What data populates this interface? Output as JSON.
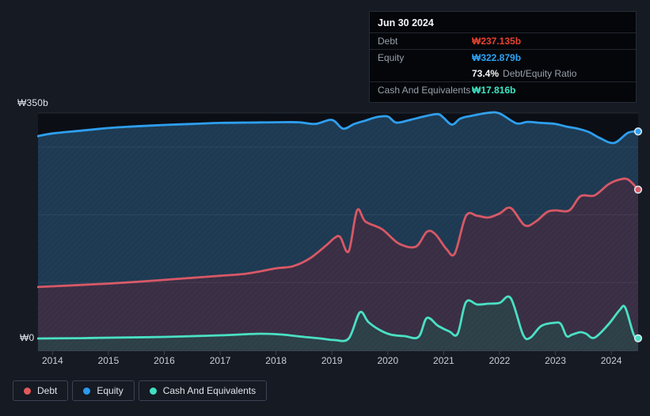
{
  "tooltip": {
    "date": "Jun 30 2024",
    "debt_label": "Debt",
    "debt_value": "₩237.135b",
    "debt_color": "#e8432f",
    "equity_label": "Equity",
    "equity_value": "₩322.879b",
    "equity_color": "#2da4f5",
    "ratio_value": "73.4%",
    "ratio_label": "Debt/Equity Ratio",
    "cash_label": "Cash And Equivalents",
    "cash_value": "₩17.816b",
    "cash_color": "#3ee6c4"
  },
  "axis": {
    "y_top_label": "₩350b",
    "y_bottom_label": "₩0",
    "years": [
      "2014",
      "2015",
      "2016",
      "2017",
      "2018",
      "2019",
      "2020",
      "2021",
      "2022",
      "2023",
      "2024"
    ]
  },
  "legend": [
    {
      "label": "Debt",
      "color": "#e45858"
    },
    {
      "label": "Equity",
      "color": "#2b9af0"
    },
    {
      "label": "Cash And Equivalents",
      "color": "#41e0c2"
    }
  ],
  "chart_data": {
    "type": "area",
    "x_unit": "year",
    "x_range": [
      2013.74,
      2024.48
    ],
    "ylim": [
      0,
      350
    ],
    "yticks": [
      0,
      100,
      200,
      300,
      350
    ],
    "xticks": [
      2014,
      2015,
      2016,
      2017,
      2018,
      2019,
      2020,
      2021,
      2022,
      2023,
      2024
    ],
    "currency": "₩ billions",
    "marker_stroke": "#dce6ee",
    "series": [
      {
        "name": "Equity",
        "color": "#2e9fee",
        "fill": "#1d3a52",
        "end_value": 322.879,
        "points": [
          [
            2013.74,
            316
          ],
          [
            2014,
            320
          ],
          [
            2014.5,
            324
          ],
          [
            2015,
            328
          ],
          [
            2015.5,
            330.5
          ],
          [
            2016,
            332.5
          ],
          [
            2016.5,
            334
          ],
          [
            2017,
            335.5
          ],
          [
            2017.5,
            336
          ],
          [
            2018,
            336.5
          ],
          [
            2018.4,
            336.5
          ],
          [
            2018.7,
            334
          ],
          [
            2019.0,
            340
          ],
          [
            2019.2,
            327
          ],
          [
            2019.4,
            334
          ],
          [
            2019.6,
            339
          ],
          [
            2019.8,
            344
          ],
          [
            2020.0,
            345
          ],
          [
            2020.15,
            336
          ],
          [
            2020.4,
            340
          ],
          [
            2020.7,
            346
          ],
          [
            2020.9,
            348.5
          ],
          [
            2021.0,
            343
          ],
          [
            2021.15,
            333
          ],
          [
            2021.3,
            342
          ],
          [
            2021.5,
            346
          ],
          [
            2021.8,
            350.5
          ],
          [
            2022.0,
            349.5
          ],
          [
            2022.3,
            335
          ],
          [
            2022.5,
            337
          ],
          [
            2022.75,
            335.5
          ],
          [
            2023.0,
            334
          ],
          [
            2023.2,
            330
          ],
          [
            2023.4,
            327
          ],
          [
            2023.6,
            322
          ],
          [
            2023.8,
            313
          ],
          [
            2024.05,
            306
          ],
          [
            2024.3,
            321
          ],
          [
            2024.48,
            322.879
          ]
        ]
      },
      {
        "name": "Debt",
        "color": "#d85866",
        "fill": "#3a2e44",
        "end_value": 237.135,
        "points": [
          [
            2013.74,
            93.5
          ],
          [
            2014,
            94.5
          ],
          [
            2014.5,
            96.5
          ],
          [
            2015,
            98.5
          ],
          [
            2015.5,
            101
          ],
          [
            2016,
            104
          ],
          [
            2016.5,
            107
          ],
          [
            2017,
            110
          ],
          [
            2017.5,
            113.5
          ],
          [
            2018,
            121
          ],
          [
            2018.3,
            124
          ],
          [
            2018.6,
            135.5
          ],
          [
            2018.9,
            155
          ],
          [
            2019.05,
            166
          ],
          [
            2019.15,
            167
          ],
          [
            2019.3,
            146
          ],
          [
            2019.45,
            206.5
          ],
          [
            2019.6,
            190
          ],
          [
            2019.9,
            178.5
          ],
          [
            2020.2,
            157.5
          ],
          [
            2020.5,
            153
          ],
          [
            2020.7,
            175
          ],
          [
            2020.85,
            171.5
          ],
          [
            2021.05,
            149.5
          ],
          [
            2021.2,
            143
          ],
          [
            2021.4,
            198.5
          ],
          [
            2021.6,
            198.5
          ],
          [
            2021.8,
            196
          ],
          [
            2022.0,
            202
          ],
          [
            2022.2,
            210
          ],
          [
            2022.45,
            184.5
          ],
          [
            2022.65,
            190
          ],
          [
            2022.85,
            204
          ],
          [
            2023.0,
            206.5
          ],
          [
            2023.25,
            206.5
          ],
          [
            2023.45,
            227.5
          ],
          [
            2023.7,
            228.5
          ],
          [
            2023.95,
            245
          ],
          [
            2024.15,
            252
          ],
          [
            2024.3,
            252
          ],
          [
            2024.48,
            237.135
          ]
        ]
      },
      {
        "name": "Cash And Equivalents",
        "color": "#4ae0c3",
        "fill": "#2d3f47",
        "end_value": 17.816,
        "points": [
          [
            2013.74,
            17.5
          ],
          [
            2014.5,
            18
          ],
          [
            2015,
            18.7
          ],
          [
            2016,
            19.8
          ],
          [
            2017,
            22.2
          ],
          [
            2017.7,
            24.5
          ],
          [
            2018.1,
            23.3
          ],
          [
            2018.5,
            19.8
          ],
          [
            2018.8,
            17.5
          ],
          [
            2019.05,
            15.2
          ],
          [
            2019.3,
            17.5
          ],
          [
            2019.5,
            56
          ],
          [
            2019.65,
            42
          ],
          [
            2019.85,
            30.3
          ],
          [
            2020.05,
            23.3
          ],
          [
            2020.3,
            21
          ],
          [
            2020.55,
            19.8
          ],
          [
            2020.7,
            47.8
          ],
          [
            2020.9,
            36.2
          ],
          [
            2021.1,
            28
          ],
          [
            2021.25,
            24.5
          ],
          [
            2021.4,
            71.2
          ],
          [
            2021.6,
            67.7
          ],
          [
            2021.8,
            68.8
          ],
          [
            2022.0,
            70
          ],
          [
            2022.2,
            77
          ],
          [
            2022.42,
            23.3
          ],
          [
            2022.55,
            18.7
          ],
          [
            2022.75,
            36.2
          ],
          [
            2023.0,
            40.8
          ],
          [
            2023.1,
            38.5
          ],
          [
            2023.2,
            21
          ],
          [
            2023.3,
            23.3
          ],
          [
            2023.45,
            26.8
          ],
          [
            2023.55,
            24.5
          ],
          [
            2023.7,
            18.7
          ],
          [
            2023.95,
            38.5
          ],
          [
            2024.15,
            59.5
          ],
          [
            2024.25,
            63
          ],
          [
            2024.4,
            23.3
          ],
          [
            2024.48,
            17.816
          ]
        ]
      }
    ]
  }
}
